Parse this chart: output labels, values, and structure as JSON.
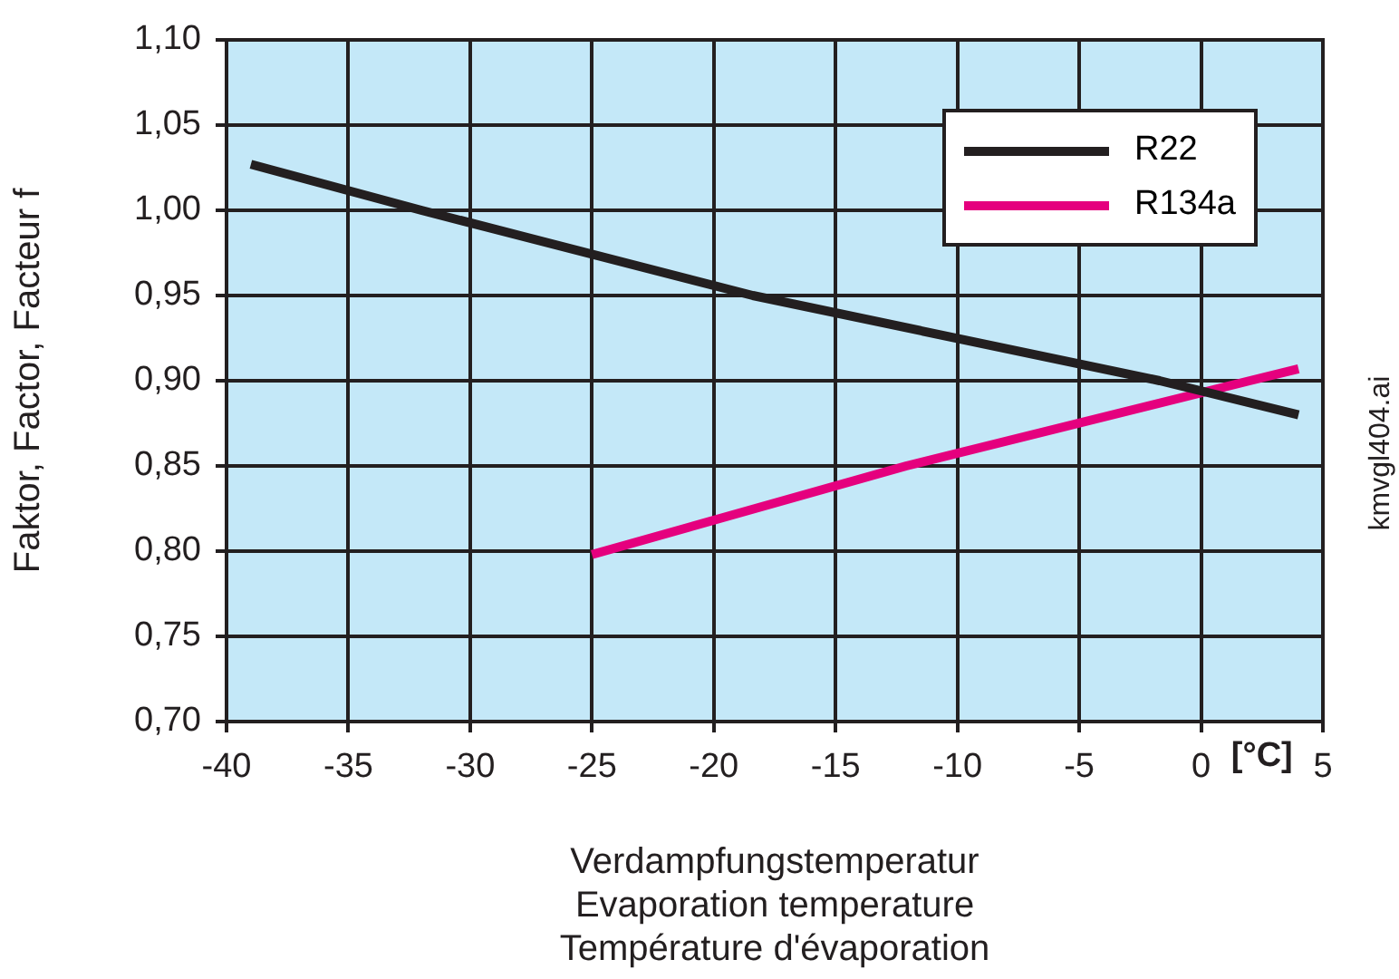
{
  "chart_data": {
    "type": "line",
    "xlabel": "Verdampfungstemperatur\nEvaporation temperature\nTempérature d'évaporation",
    "ylabel": "Faktor, Factor, Facteur f",
    "series": [
      {
        "name": "R22",
        "color": "#231f20",
        "x": [
          -39,
          -32,
          -18.4,
          -1.7,
          4
        ],
        "values": [
          1.027,
          1.0,
          0.95,
          0.9,
          0.88
        ]
      },
      {
        "name": "R134a",
        "color": "#e5007e",
        "x": [
          -25,
          -12.1,
          2,
          4
        ],
        "values": [
          0.798,
          0.85,
          0.9,
          0.907
        ]
      }
    ],
    "xlim": [
      -40,
      5
    ],
    "xticks": [
      -40,
      -35,
      -30,
      -25,
      -20,
      -15,
      -10,
      -5,
      0,
      5
    ],
    "ylim": [
      0.7,
      1.1
    ],
    "yticks": [
      {
        "value": 0.7,
        "label": "0,70"
      },
      {
        "value": 0.75,
        "label": "0,75"
      },
      {
        "value": 0.8,
        "label": "0,80"
      },
      {
        "value": 0.85,
        "label": "0,85"
      },
      {
        "value": 0.9,
        "label": "0,90"
      },
      {
        "value": 0.95,
        "label": "0,95"
      },
      {
        "value": 1.0,
        "label": "1,00"
      },
      {
        "value": 1.05,
        "label": "1,05"
      },
      {
        "value": 1.1,
        "label": "1,10"
      }
    ],
    "annotations": [
      "[°C]",
      "kmvgl404.ai"
    ],
    "grid": true,
    "legend": "top right",
    "marker": "none",
    "line_style": "solid"
  }
}
